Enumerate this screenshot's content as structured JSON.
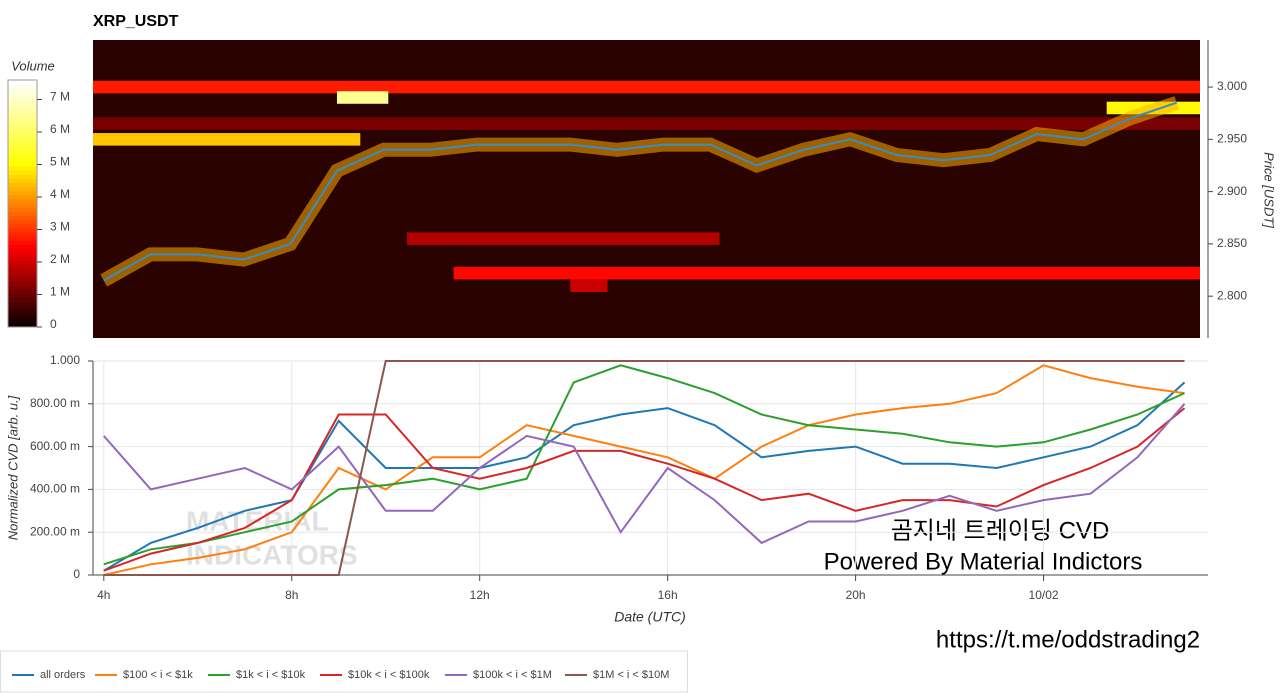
{
  "chart_data": [
    {
      "type": "heatmap",
      "title": "XRP_USDT",
      "ylabel": "Price [USDT]",
      "xlim": [
        3.77,
        27.5
      ],
      "ylim": [
        2.76,
        3.045
      ],
      "yticks": [
        {
          "value": 2.8,
          "label": "2.800"
        },
        {
          "value": 2.85,
          "label": "2.850"
        },
        {
          "value": 2.9,
          "label": "2.900"
        },
        {
          "value": 2.95,
          "label": "2.950"
        },
        {
          "value": 3.0,
          "label": "3.000"
        }
      ],
      "colorbar": {
        "label": "Volume",
        "lim": [
          0,
          7600000
        ],
        "ticks": [
          0,
          {
            "value": 1000000,
            "label": "1 M"
          },
          {
            "value": 2000000,
            "label": "2 M"
          },
          {
            "value": 3000000,
            "label": "3 M"
          },
          {
            "value": 4000000,
            "label": "4 M"
          },
          {
            "value": 5000000,
            "label": "5 M"
          },
          {
            "value": 6000000,
            "label": "6 M"
          },
          {
            "value": 7000000,
            "label": "7 M"
          }
        ]
      },
      "bands": [
        {
          "price": 3.0,
          "from": 3.77,
          "to": 27.5,
          "volume": 2800000
        },
        {
          "price": 2.965,
          "from": 3.77,
          "to": 27.5,
          "volume": 1200000
        },
        {
          "price": 2.95,
          "from": 3.77,
          "to": 9.5,
          "volume": 4500000
        },
        {
          "price": 2.99,
          "from": 9.0,
          "to": 10.1,
          "volume": 6500000
        },
        {
          "price": 2.98,
          "from": 25.5,
          "to": 27.5,
          "volume": 5000000
        },
        {
          "price": 2.855,
          "from": 10.5,
          "to": 17.2,
          "volume": 1800000
        },
        {
          "price": 2.822,
          "from": 11.5,
          "to": 27.5,
          "volume": 2600000
        },
        {
          "price": 2.81,
          "from": 14.0,
          "to": 14.8,
          "volume": 2000000
        }
      ],
      "x": [
        4,
        5,
        6,
        7,
        8,
        9,
        10,
        11,
        12,
        13,
        14,
        15,
        16,
        17,
        18,
        19,
        20,
        21,
        22,
        23,
        24,
        25,
        26,
        27
      ],
      "series": [
        {
          "color": "#3a8cc6",
          "values": [
            2.815,
            2.84,
            2.84,
            2.835,
            2.85,
            2.92,
            2.94,
            2.94,
            2.945,
            2.945,
            2.945,
            2.94,
            2.945,
            2.945,
            2.925,
            2.94,
            2.95,
            2.935,
            2.93,
            2.935,
            2.955,
            2.95,
            2.97,
            2.985
          ]
        }
      ]
    },
    {
      "type": "line",
      "xlabel": "Date (UTC)",
      "ylabel": "Normalized CVD [arb. u.]",
      "xlim": [
        3.77,
        27.5
      ],
      "xticks": [
        {
          "value": 4,
          "label": "4h"
        },
        {
          "value": 8,
          "label": "8h"
        },
        {
          "value": 12,
          "label": "12h"
        },
        {
          "value": 16,
          "label": "16h"
        },
        {
          "value": 20,
          "label": "20h"
        },
        {
          "value": 24,
          "label": "10/02"
        }
      ],
      "ylim": [
        0,
        1
      ],
      "yticks": [
        0,
        {
          "value": 0.2,
          "label": "200.00 m"
        },
        {
          "value": 0.4,
          "label": "400.00 m"
        },
        {
          "value": 0.6,
          "label": "600.00 m"
        },
        {
          "value": 0.8,
          "label": "800.00 m"
        },
        {
          "value": 1,
          "label": "1.000"
        }
      ],
      "grid": true,
      "legend": "bottom-left",
      "x": [
        4,
        5,
        6,
        7,
        8,
        9,
        10,
        11,
        12,
        13,
        14,
        15,
        16,
        17,
        18,
        19,
        20,
        21,
        22,
        23,
        24,
        25,
        26,
        27
      ],
      "series": [
        {
          "name": "all orders",
          "color": "#1f77b4",
          "values": [
            0.02,
            0.15,
            0.22,
            0.3,
            0.35,
            0.72,
            0.5,
            0.5,
            0.5,
            0.55,
            0.7,
            0.75,
            0.78,
            0.7,
            0.55,
            0.58,
            0.6,
            0.52,
            0.52,
            0.5,
            0.55,
            0.6,
            0.7,
            0.9
          ]
        },
        {
          "name": "$100 < i < $1k",
          "color": "#ff7f0e",
          "values": [
            0.0,
            0.05,
            0.08,
            0.12,
            0.2,
            0.5,
            0.4,
            0.55,
            0.55,
            0.7,
            0.65,
            0.6,
            0.55,
            0.45,
            0.6,
            0.7,
            0.75,
            0.78,
            0.8,
            0.85,
            0.98,
            0.92,
            0.88,
            0.85
          ]
        },
        {
          "name": "$1k < i < $10k",
          "color": "#2ca02c",
          "values": [
            0.05,
            0.12,
            0.15,
            0.2,
            0.25,
            0.4,
            0.42,
            0.45,
            0.4,
            0.45,
            0.9,
            0.98,
            0.92,
            0.85,
            0.75,
            0.7,
            0.68,
            0.66,
            0.62,
            0.6,
            0.62,
            0.68,
            0.75,
            0.85
          ]
        },
        {
          "name": "$10k < i < $100k",
          "color": "#d62728",
          "values": [
            0.02,
            0.1,
            0.15,
            0.22,
            0.35,
            0.75,
            0.75,
            0.5,
            0.45,
            0.5,
            0.58,
            0.58,
            0.52,
            0.45,
            0.35,
            0.38,
            0.3,
            0.35,
            0.35,
            0.32,
            0.42,
            0.5,
            0.6,
            0.78
          ]
        },
        {
          "name": "$100k < i < $1M",
          "color": "#9467bd",
          "values": [
            0.65,
            0.4,
            0.45,
            0.5,
            0.4,
            0.6,
            0.3,
            0.3,
            0.5,
            0.65,
            0.6,
            0.2,
            0.5,
            0.35,
            0.15,
            0.25,
            0.25,
            0.3,
            0.37,
            0.3,
            0.35,
            0.38,
            0.55,
            0.8
          ]
        },
        {
          "name": "$1M < i < $10M",
          "color": "#8c564b",
          "values": [
            0,
            0,
            0,
            0,
            0,
            0,
            1,
            1,
            1,
            1,
            1,
            1,
            1,
            1,
            1,
            1,
            1,
            1,
            1,
            1,
            1,
            1,
            1,
            1
          ]
        }
      ],
      "annotations": [
        "MATERIAL",
        "INDICATORS",
        "곰지네 트레이딩 CVD",
        "Powered By Material Indictors",
        "https://t.me/oddstrading2"
      ]
    }
  ]
}
